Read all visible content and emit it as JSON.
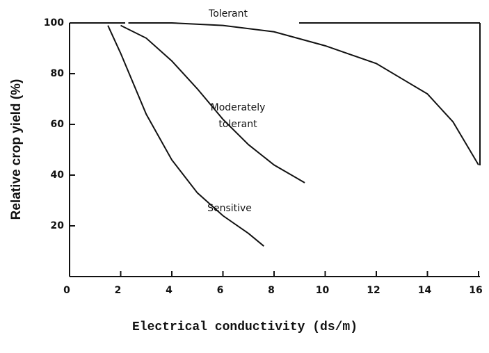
{
  "chart_data": {
    "type": "line",
    "xlabel": "Electrical conductivity (ds/m)",
    "ylabel": "Relative crop yield (%)",
    "xlim": [
      0,
      16
    ],
    "ylim": [
      0,
      100
    ],
    "xticks": [
      0,
      2,
      4,
      6,
      8,
      10,
      12,
      14,
      16
    ],
    "yticks": [
      20,
      40,
      60,
      80,
      100
    ],
    "series": [
      {
        "name": "Tolerant",
        "color": "#111111",
        "x": [
          2.3,
          4,
          6,
          8,
          10,
          12,
          13,
          14,
          15,
          16
        ],
        "values": [
          100,
          100,
          99,
          96.5,
          91,
          84,
          78,
          72,
          61,
          44
        ]
      },
      {
        "name": "Moderately tolerant",
        "color": "#111111",
        "x": [
          2,
          3,
          4,
          5,
          6,
          7,
          8,
          9.2
        ],
        "values": [
          99,
          94,
          85,
          74,
          62,
          52,
          44,
          37
        ]
      },
      {
        "name": "Sensitive",
        "color": "#111111",
        "x": [
          1.5,
          2,
          3,
          4,
          5,
          6,
          7,
          7.6
        ],
        "values": [
          99,
          88,
          64,
          46,
          33,
          24,
          17,
          12
        ]
      }
    ]
  }
}
